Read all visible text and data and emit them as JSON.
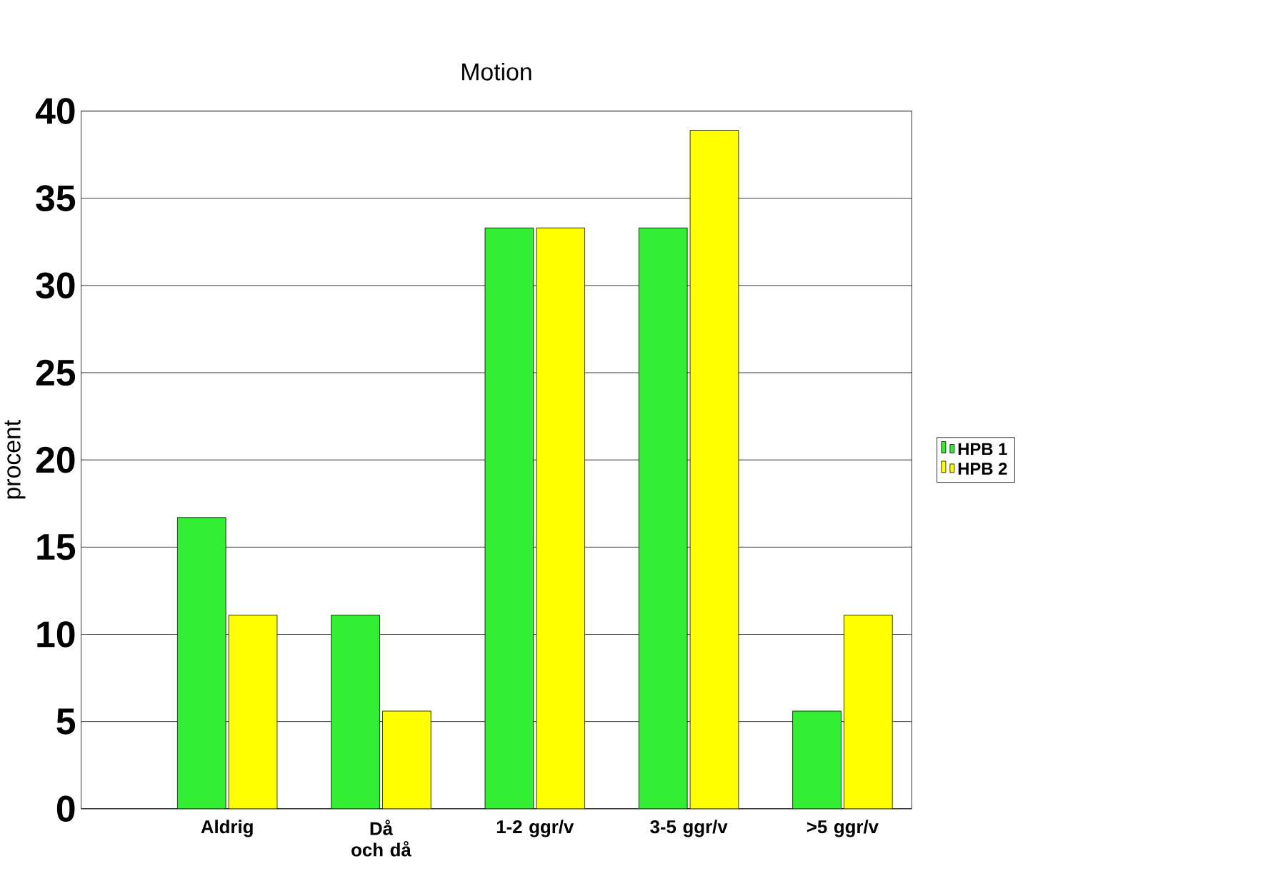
{
  "chart_data": {
    "type": "bar",
    "title": "Motion",
    "ylabel": "procent",
    "categories": [
      "Aldrig",
      "Då och då",
      "1-2 ggr/v",
      "3-5 ggr/v",
      ">5 ggr/v"
    ],
    "series": [
      {
        "name": "HPB 1",
        "color": "#33ee33",
        "values": [
          16.7,
          11.1,
          33.3,
          33.3,
          5.6
        ]
      },
      {
        "name": "HPB 2",
        "color": "#ffff00",
        "values": [
          11.1,
          5.6,
          33.3,
          38.9,
          11.1
        ]
      }
    ],
    "ylim": [
      0,
      40
    ],
    "yticks": [
      0,
      5,
      10,
      15,
      20,
      25,
      30,
      35,
      40
    ],
    "grid": "y",
    "legend": "right"
  }
}
